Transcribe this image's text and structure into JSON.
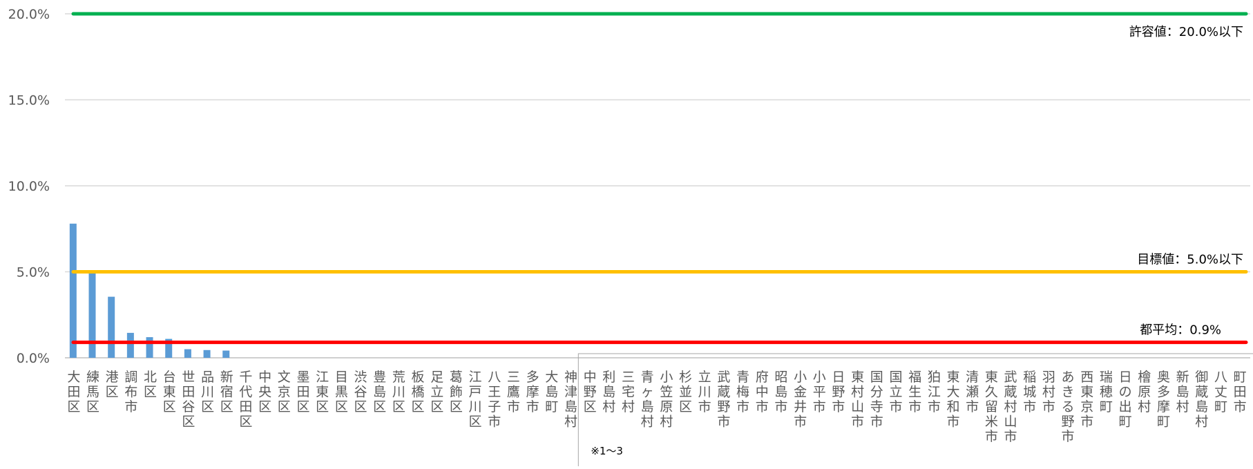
{
  "chart_data": {
    "type": "bar",
    "ylim": [
      0,
      20
    ],
    "yticks": [
      "0.0%",
      "5.0%",
      "10.0%",
      "15.0%",
      "20.0%"
    ],
    "ytick_values": [
      0,
      5,
      10,
      15,
      20
    ],
    "grid": true,
    "categories": [
      "大田区",
      "練馬区",
      "港区",
      "調布市",
      "北区",
      "台東区",
      "世田谷区",
      "品川区",
      "新宿区",
      "千代田区",
      "中央区",
      "文京区",
      "墨田区",
      "江東区",
      "目黒区",
      "渋谷区",
      "豊島区",
      "荒川区",
      "板橋区",
      "足立区",
      "葛飾区",
      "江戸川区",
      "八王子市",
      "三鷹市",
      "多摩市",
      "大島町",
      "神津島村",
      "中野区",
      "利島村",
      "三宅村",
      "青ヶ島村",
      "小笠原村",
      "杉並区",
      "立川市",
      "武蔵野市",
      "青梅市",
      "府中市",
      "昭島市",
      "小金井市",
      "小平市",
      "日野市",
      "東村山市",
      "国分寺市",
      "国立市",
      "福生市",
      "狛江市",
      "東大和市",
      "清瀬市",
      "東久留米市",
      "武蔵村山市",
      "稲城市",
      "羽村市",
      "あきる野市",
      "西東京市",
      "瑞穂町",
      "日の出町",
      "檜原村",
      "奥多摩町",
      "新島村",
      "御蔵島村",
      "八丈町",
      "町田市"
    ],
    "series": [
      {
        "values": [
          7.8,
          4.9,
          3.55,
          1.45,
          1.2,
          1.1,
          0.5,
          0.45,
          0.42,
          0,
          0,
          0,
          0,
          0,
          0,
          0,
          0,
          0,
          0,
          0,
          0,
          0,
          0,
          0,
          0,
          0,
          0,
          0,
          0,
          0,
          0,
          0,
          0,
          0,
          0,
          0,
          0,
          0,
          0,
          0,
          0,
          0,
          0,
          0,
          0,
          0,
          0,
          0,
          0,
          0,
          0,
          0,
          0,
          0,
          0,
          0,
          0,
          0,
          0,
          0,
          0,
          0
        ],
        "color": "#5b9bd5"
      }
    ],
    "reference_lines": [
      {
        "label": "許容値：20.0%以下",
        "value": 20,
        "color": "#00b050"
      },
      {
        "label": "目標値：5.0%以下",
        "value": 5,
        "color": "#ffc000"
      },
      {
        "label": "都平均：0.9%",
        "value": 0.9,
        "color": "#ff0000"
      }
    ],
    "note": "※1〜3"
  }
}
